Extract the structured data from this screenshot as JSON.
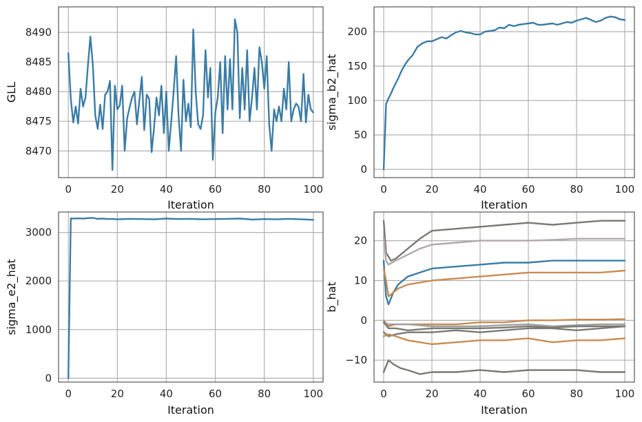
{
  "chart_data": [
    {
      "type": "line",
      "xlabel": "Iteration",
      "ylabel": "GLL",
      "xlim": [
        -4,
        104
      ],
      "ylim": [
        8465.5,
        8494.3
      ],
      "xticks": [
        0,
        20,
        40,
        60,
        80,
        100
      ],
      "yticks": [
        8470,
        8475,
        8480,
        8485,
        8490
      ],
      "grid": true,
      "series": [
        {
          "color": "#3a7ca5",
          "x": [
            0,
            1,
            2,
            3,
            4,
            5,
            6,
            7,
            8,
            9,
            10,
            11,
            12,
            13,
            14,
            15,
            16,
            17,
            18,
            19,
            20,
            21,
            22,
            23,
            24,
            25,
            26,
            27,
            28,
            29,
            30,
            31,
            32,
            33,
            34,
            35,
            36,
            37,
            38,
            39,
            40,
            41,
            42,
            43,
            44,
            45,
            46,
            47,
            48,
            49,
            50,
            51,
            52,
            53,
            54,
            55,
            56,
            57,
            58,
            59,
            60,
            61,
            62,
            63,
            64,
            65,
            66,
            67,
            68,
            69,
            70,
            71,
            72,
            73,
            74,
            75,
            76,
            77,
            78,
            79,
            80,
            81,
            82,
            83,
            84,
            85,
            86,
            87,
            88,
            89,
            90,
            91,
            92,
            93,
            94,
            95,
            96,
            97,
            98,
            99,
            100
          ],
          "values": [
            8486.5,
            8478.8,
            8474.8,
            8477.5,
            8474.6,
            8480.5,
            8477.5,
            8479.0,
            8484.5,
            8489.3,
            8484.5,
            8476.0,
            8473.7,
            8477.8,
            8473.7,
            8479.5,
            8480.0,
            8481.8,
            8466.8,
            8481.0,
            8477.0,
            8477.7,
            8481.0,
            8470.0,
            8475.5,
            8477.3,
            8479.0,
            8480.0,
            8474.5,
            8478.5,
            8482.5,
            8473.5,
            8479.5,
            8478.8,
            8469.8,
            8474.0,
            8479.0,
            8476.0,
            8481.0,
            8473.0,
            8480.0,
            8470.0,
            8475.0,
            8480.0,
            8486.0,
            8476.0,
            8470.0,
            8482.0,
            8475.0,
            8478.0,
            8474.0,
            8490.5,
            8480.0,
            8474.5,
            8473.7,
            8476.0,
            8487.0,
            8479.0,
            8484.0,
            8468.5,
            8476.5,
            8479.0,
            8485.0,
            8473.0,
            8486.0,
            8477.0,
            8485.5,
            8477.0,
            8492.2,
            8490.0,
            8475.5,
            8484.0,
            8477.0,
            8487.0,
            8475.0,
            8479.0,
            8484.0,
            8477.0,
            8487.5,
            8485.0,
            8480.5,
            8486.0,
            8474.5,
            8470.0,
            8477.0,
            8475.0,
            8477.5,
            8475.0,
            8480.5,
            8477.0,
            8485.0,
            8475.0,
            8477.0,
            8478.0,
            8477.5,
            8475.0,
            8483.0,
            8474.8,
            8479.5,
            8477.0,
            8476.5
          ]
        }
      ]
    },
    {
      "type": "line",
      "xlabel": "Iteration",
      "ylabel": "sigma_b2_hat",
      "xlim": [
        -4,
        104
      ],
      "ylim": [
        -12,
        236
      ],
      "xticks": [
        0,
        20,
        40,
        60,
        80,
        100
      ],
      "yticks": [
        0,
        50,
        100,
        150,
        200
      ],
      "grid": true,
      "series": [
        {
          "color": "#3a7ca5",
          "x": [
            0,
            1,
            2,
            3,
            4,
            5,
            6,
            7,
            8,
            9,
            10,
            12,
            14,
            16,
            18,
            20,
            22,
            24,
            26,
            28,
            30,
            32,
            34,
            36,
            38,
            40,
            42,
            44,
            46,
            48,
            50,
            52,
            54,
            56,
            58,
            60,
            62,
            64,
            66,
            68,
            70,
            72,
            74,
            76,
            78,
            80,
            82,
            84,
            86,
            88,
            90,
            92,
            94,
            96,
            98,
            100
          ],
          "values": [
            0,
            95,
            103,
            110,
            118,
            125,
            132,
            140,
            147,
            153,
            158,
            166,
            178,
            183,
            186,
            186,
            189,
            192,
            190,
            195,
            199,
            201,
            199,
            198,
            196,
            196,
            200,
            201,
            202,
            206,
            205,
            210,
            208,
            210,
            211,
            212,
            213,
            210,
            210,
            211,
            212,
            210,
            212,
            214,
            213,
            216,
            218,
            220,
            217,
            214,
            216,
            220,
            222,
            221,
            218,
            217
          ]
        }
      ]
    },
    {
      "type": "line",
      "xlabel": "Iteration",
      "ylabel": "sigma_e2_hat",
      "xlim": [
        -4,
        104
      ],
      "ylim": [
        -80,
        3420
      ],
      "xticks": [
        0,
        20,
        40,
        60,
        80,
        100
      ],
      "yticks": [
        0,
        1000,
        2000,
        3000
      ],
      "grid": true,
      "series": [
        {
          "color": "#3a7ca5",
          "x": [
            0,
            1,
            2,
            4,
            6,
            8,
            10,
            12,
            14,
            16,
            18,
            20,
            25,
            30,
            35,
            40,
            45,
            50,
            55,
            60,
            65,
            70,
            75,
            80,
            85,
            90,
            95,
            100
          ],
          "values": [
            0,
            3290,
            3285,
            3290,
            3285,
            3295,
            3300,
            3280,
            3285,
            3275,
            3280,
            3270,
            3280,
            3275,
            3270,
            3285,
            3275,
            3280,
            3270,
            3275,
            3280,
            3285,
            3265,
            3275,
            3270,
            3280,
            3270,
            3260
          ]
        }
      ]
    },
    {
      "type": "line",
      "xlabel": "Iteration",
      "ylabel": "b_hat",
      "xlim": [
        -4,
        104
      ],
      "ylim": [
        -15.5,
        27.2
      ],
      "xticks": [
        0,
        20,
        40,
        60,
        80,
        100
      ],
      "yticks": [
        -10,
        0,
        10,
        20
      ],
      "grid": true,
      "series": [
        {
          "color": "#777a70",
          "x": [
            0,
            1,
            3,
            5,
            10,
            15,
            20,
            30,
            40,
            50,
            60,
            70,
            80,
            90,
            100
          ],
          "values": [
            25,
            17,
            15,
            15.5,
            18,
            20.5,
            22.5,
            23,
            23.5,
            24,
            24.5,
            24,
            24.5,
            25,
            25
          ]
        },
        {
          "color": "#b0a8aa",
          "x": [
            0,
            1,
            2,
            5,
            10,
            15,
            20,
            30,
            40,
            50,
            60,
            70,
            80,
            90,
            100
          ],
          "values": [
            21,
            15,
            14,
            15,
            16.5,
            18,
            19,
            19.5,
            20,
            20,
            20,
            20.2,
            20.5,
            20.5,
            20.5
          ]
        },
        {
          "color": "#3a7ca5",
          "x": [
            0,
            1,
            2,
            4,
            6,
            10,
            15,
            20,
            30,
            40,
            50,
            60,
            70,
            80,
            90,
            100
          ],
          "values": [
            15,
            6,
            4,
            7,
            9,
            11,
            12,
            13,
            13.5,
            14,
            14.5,
            14.5,
            15,
            15,
            15,
            15
          ]
        },
        {
          "color": "#c98b51",
          "x": [
            0,
            1,
            2,
            4,
            6,
            10,
            15,
            20,
            30,
            40,
            50,
            60,
            70,
            80,
            90,
            100
          ],
          "values": [
            13,
            10,
            6,
            7,
            8,
            9,
            9.5,
            10,
            10.5,
            11,
            11.5,
            12,
            12,
            12,
            12,
            12.5
          ]
        },
        {
          "color": "#c98b51",
          "x": [
            0,
            2,
            5,
            10,
            20,
            30,
            40,
            50,
            60,
            70,
            80,
            90,
            100
          ],
          "values": [
            0,
            -1.5,
            -1,
            -1,
            -1,
            -1,
            -0.5,
            -0.5,
            0,
            0,
            0.2,
            0.2,
            0.3
          ]
        },
        {
          "color": "#a09fa0",
          "x": [
            0,
            2,
            5,
            10,
            20,
            30,
            40,
            50,
            60,
            70,
            80,
            90,
            100
          ],
          "values": [
            -0.5,
            -1,
            -1,
            -1,
            -1.5,
            -1.5,
            -1.5,
            -1.2,
            -1,
            -1.5,
            -1.2,
            -1,
            -1
          ]
        },
        {
          "color": "#777a70",
          "x": [
            0,
            2,
            5,
            10,
            20,
            30,
            40,
            50,
            60,
            70,
            80,
            90,
            100
          ],
          "values": [
            -0.5,
            -2,
            -2,
            -2.5,
            -2,
            -2,
            -2,
            -1.8,
            -1.5,
            -1.8,
            -1.5,
            -1.5,
            -1.5
          ]
        },
        {
          "color": "#777a70",
          "x": [
            0,
            2,
            5,
            10,
            20,
            30,
            40,
            50,
            60,
            70,
            80,
            90,
            100
          ],
          "values": [
            -3,
            -4,
            -3.5,
            -3,
            -3,
            -2.5,
            -3,
            -2.5,
            -2,
            -2,
            -2.5,
            -2,
            -1.5
          ]
        },
        {
          "color": "#c98b51",
          "x": [
            0,
            2,
            5,
            10,
            20,
            30,
            40,
            50,
            60,
            70,
            80,
            90,
            100
          ],
          "values": [
            -4,
            -3.5,
            -4,
            -5,
            -6,
            -5.5,
            -5,
            -5,
            -4.5,
            -5.5,
            -5,
            -5,
            -4.5
          ]
        },
        {
          "color": "#777a70",
          "x": [
            0,
            1,
            2,
            4,
            7,
            10,
            15,
            20,
            30,
            40,
            50,
            60,
            70,
            80,
            90,
            100
          ],
          "values": [
            -13,
            -11.5,
            -10,
            -11,
            -12,
            -12.5,
            -13.5,
            -13,
            -13,
            -12.5,
            -13,
            -12.5,
            -12.5,
            -12.5,
            -13,
            -13
          ]
        }
      ]
    }
  ]
}
